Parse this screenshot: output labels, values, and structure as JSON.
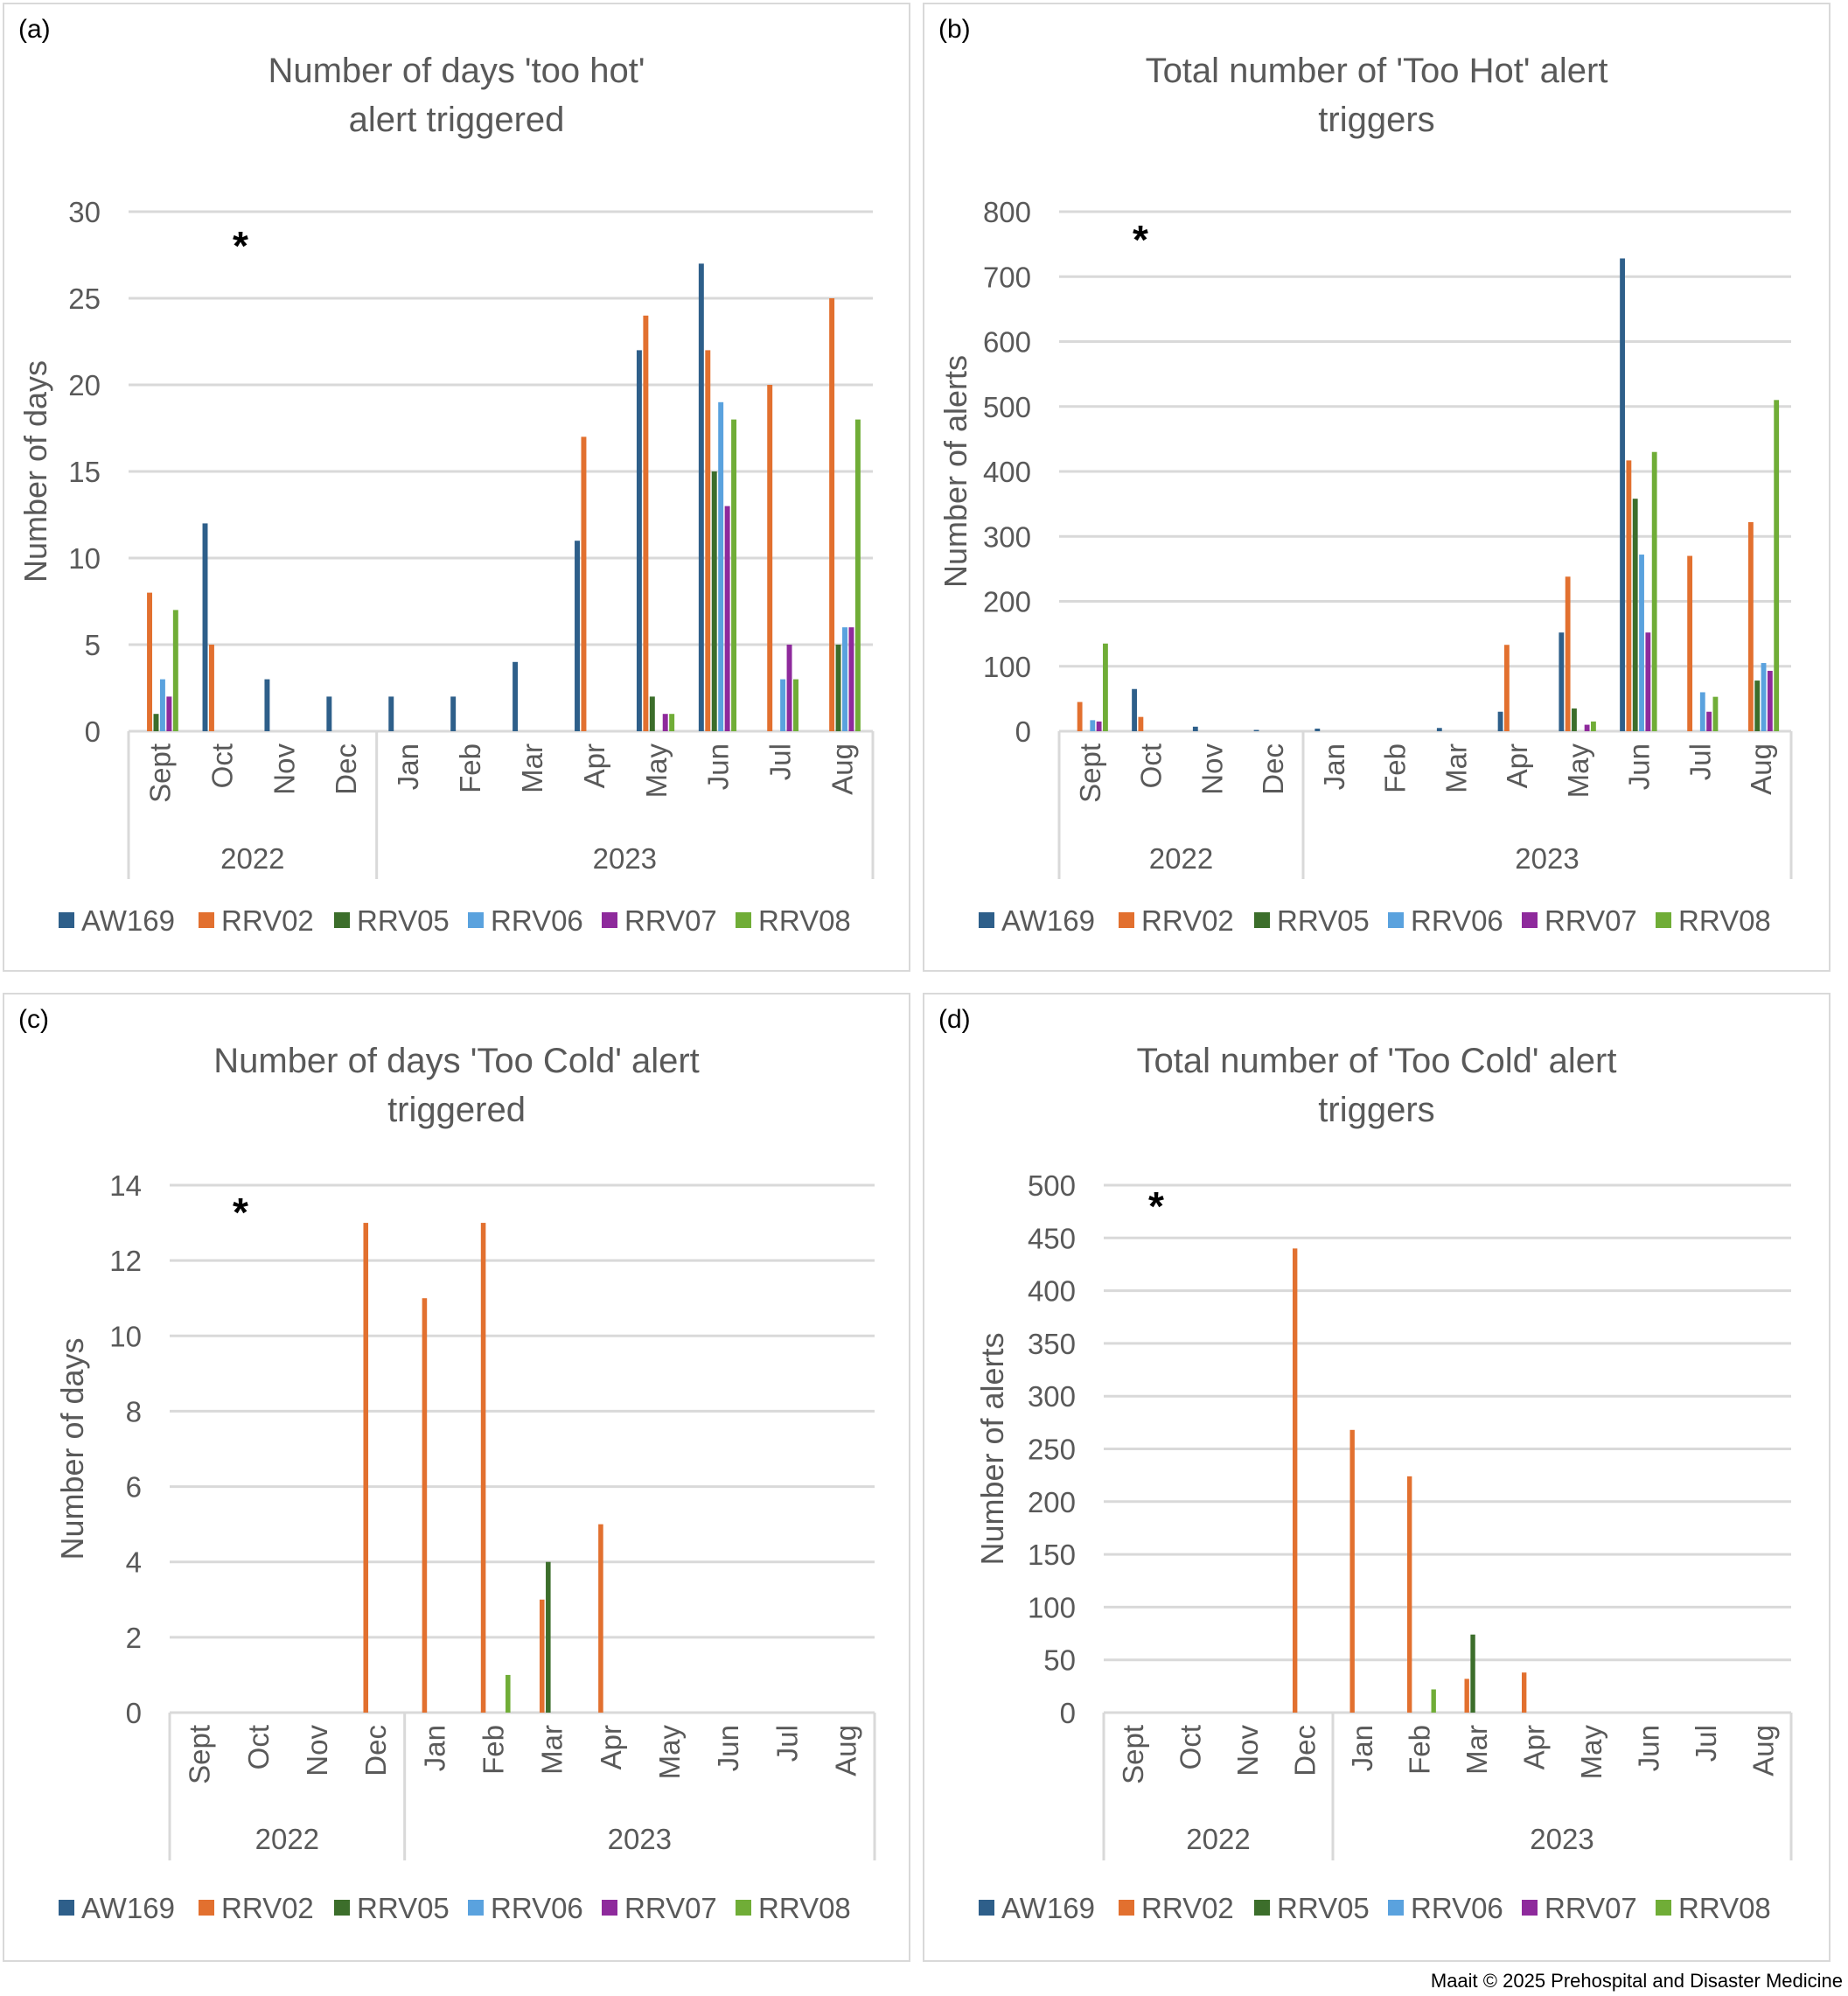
{
  "footer": "Maait © 2025 Prehospital and Disaster Medicine",
  "chart_data": [
    {
      "panel": "(a)",
      "type": "bar",
      "title": "Number of days 'too hot' alert triggered",
      "ylabel": "Number of days",
      "xlabel": "",
      "ylim": [
        0,
        30
      ],
      "yticks": [
        0,
        5,
        10,
        15,
        20,
        25,
        30
      ],
      "grid": true,
      "legend": "bottom",
      "annotation": "*",
      "categories": [
        "Sept",
        "Oct",
        "Nov",
        "Dec",
        "Jan",
        "Feb",
        "Mar",
        "Apr",
        "May",
        "Jun",
        "Jul",
        "Aug"
      ],
      "groups": [
        {
          "label": "2022",
          "span": 4
        },
        {
          "label": "2023",
          "span": 8
        }
      ],
      "series": [
        {
          "name": "AW169",
          "color": "#2e5f8a",
          "values": [
            0,
            12,
            3,
            2,
            2,
            2,
            4,
            11,
            22,
            27,
            0,
            0
          ]
        },
        {
          "name": "RRV02",
          "color": "#e2702f",
          "values": [
            8,
            5,
            0,
            0,
            0,
            0,
            0,
            17,
            24,
            22,
            20,
            25
          ]
        },
        {
          "name": "RRV05",
          "color": "#3c6e2b",
          "values": [
            1,
            0,
            0,
            0,
            0,
            0,
            0,
            0,
            2,
            15,
            0,
            5
          ]
        },
        {
          "name": "RRV06",
          "color": "#5aa2de",
          "values": [
            3,
            0,
            0,
            0,
            0,
            0,
            0,
            0,
            0,
            19,
            3,
            6
          ]
        },
        {
          "name": "RRV07",
          "color": "#8e2a9c",
          "values": [
            2,
            0,
            0,
            0,
            0,
            0,
            0,
            0,
            1,
            13,
            5,
            6
          ]
        },
        {
          "name": "RRV08",
          "color": "#70ad37",
          "values": [
            7,
            0,
            0,
            0,
            0,
            0,
            0,
            0,
            1,
            18,
            3,
            18
          ]
        }
      ]
    },
    {
      "panel": "(b)",
      "type": "bar",
      "title": "Total number of 'Too Hot' alert triggers",
      "ylabel": "Number of alerts",
      "xlabel": "",
      "ylim": [
        0,
        800
      ],
      "yticks": [
        0,
        100,
        200,
        300,
        400,
        500,
        600,
        700,
        800
      ],
      "grid": true,
      "legend": "bottom",
      "annotation": "*",
      "categories": [
        "Sept",
        "Oct",
        "Nov",
        "Dec",
        "Jan",
        "Feb",
        "Mar",
        "Apr",
        "May",
        "Jun",
        "Jul",
        "Aug"
      ],
      "groups": [
        {
          "label": "2022",
          "span": 4
        },
        {
          "label": "2023",
          "span": 8
        }
      ],
      "series": [
        {
          "name": "AW169",
          "color": "#2e5f8a",
          "values": [
            0,
            65,
            7,
            2,
            4,
            0,
            5,
            30,
            152,
            728,
            0,
            0
          ]
        },
        {
          "name": "RRV02",
          "color": "#e2702f",
          "values": [
            45,
            22,
            0,
            0,
            0,
            0,
            0,
            133,
            238,
            417,
            270,
            322
          ]
        },
        {
          "name": "RRV05",
          "color": "#3c6e2b",
          "values": [
            0,
            0,
            0,
            0,
            0,
            0,
            0,
            0,
            35,
            358,
            0,
            78
          ]
        },
        {
          "name": "RRV06",
          "color": "#5aa2de",
          "values": [
            17,
            0,
            0,
            0,
            0,
            0,
            0,
            0,
            0,
            272,
            60,
            105
          ]
        },
        {
          "name": "RRV07",
          "color": "#8e2a9c",
          "values": [
            15,
            0,
            0,
            0,
            0,
            0,
            0,
            0,
            10,
            152,
            30,
            93
          ]
        },
        {
          "name": "RRV08",
          "color": "#70ad37",
          "values": [
            135,
            0,
            0,
            0,
            0,
            0,
            0,
            0,
            15,
            430,
            53,
            510
          ]
        }
      ]
    },
    {
      "panel": "(c)",
      "type": "bar",
      "title": "Number of days 'Too Cold' alert triggered",
      "ylabel": "Number of days",
      "xlabel": "",
      "ylim": [
        0,
        14
      ],
      "yticks": [
        0,
        2,
        4,
        6,
        8,
        10,
        12,
        14
      ],
      "grid": true,
      "legend": "bottom",
      "annotation": "*",
      "categories": [
        "Sept",
        "Oct",
        "Nov",
        "Dec",
        "Jan",
        "Feb",
        "Mar",
        "Apr",
        "May",
        "Jun",
        "Jul",
        "Aug"
      ],
      "groups": [
        {
          "label": "2022",
          "span": 4
        },
        {
          "label": "2023",
          "span": 8
        }
      ],
      "series": [
        {
          "name": "AW169",
          "color": "#2e5f8a",
          "values": [
            0,
            0,
            0,
            0,
            0,
            0,
            0,
            0,
            0,
            0,
            0,
            0
          ]
        },
        {
          "name": "RRV02",
          "color": "#e2702f",
          "values": [
            0,
            0,
            0,
            13,
            11,
            13,
            3,
            5,
            0,
            0,
            0,
            0
          ]
        },
        {
          "name": "RRV05",
          "color": "#3c6e2b",
          "values": [
            0,
            0,
            0,
            0,
            0,
            0,
            4,
            0,
            0,
            0,
            0,
            0
          ]
        },
        {
          "name": "RRV06",
          "color": "#5aa2de",
          "values": [
            0,
            0,
            0,
            0,
            0,
            0,
            0,
            0,
            0,
            0,
            0,
            0
          ]
        },
        {
          "name": "RRV07",
          "color": "#8e2a9c",
          "values": [
            0,
            0,
            0,
            0,
            0,
            0,
            0,
            0,
            0,
            0,
            0,
            0
          ]
        },
        {
          "name": "RRV08",
          "color": "#70ad37",
          "values": [
            0,
            0,
            0,
            0,
            0,
            1,
            0,
            0,
            0,
            0,
            0,
            0
          ]
        }
      ]
    },
    {
      "panel": "(d)",
      "type": "bar",
      "title": "Total number of 'Too Cold' alert triggers",
      "ylabel": "Number of alerts",
      "xlabel": "",
      "ylim": [
        0,
        500
      ],
      "yticks": [
        0,
        50,
        100,
        150,
        200,
        250,
        300,
        350,
        400,
        450,
        500
      ],
      "grid": true,
      "legend": "bottom",
      "annotation": "*",
      "categories": [
        "Sept",
        "Oct",
        "Nov",
        "Dec",
        "Jan",
        "Feb",
        "Mar",
        "Apr",
        "May",
        "Jun",
        "Jul",
        "Aug"
      ],
      "groups": [
        {
          "label": "2022",
          "span": 4
        },
        {
          "label": "2023",
          "span": 8
        }
      ],
      "series": [
        {
          "name": "AW169",
          "color": "#2e5f8a",
          "values": [
            0,
            0,
            0,
            0,
            0,
            0,
            0,
            0,
            0,
            0,
            0,
            0
          ]
        },
        {
          "name": "RRV02",
          "color": "#e2702f",
          "values": [
            0,
            0,
            0,
            440,
            268,
            224,
            32,
            38,
            0,
            0,
            0,
            0
          ]
        },
        {
          "name": "RRV05",
          "color": "#3c6e2b",
          "values": [
            0,
            0,
            0,
            0,
            0,
            0,
            74,
            0,
            0,
            0,
            0,
            0
          ]
        },
        {
          "name": "RRV06",
          "color": "#5aa2de",
          "values": [
            0,
            0,
            0,
            0,
            0,
            0,
            0,
            0,
            0,
            0,
            0,
            0
          ]
        },
        {
          "name": "RRV07",
          "color": "#8e2a9c",
          "values": [
            0,
            0,
            0,
            0,
            0,
            0,
            0,
            0,
            0,
            0,
            0,
            0
          ]
        },
        {
          "name": "RRV08",
          "color": "#70ad37",
          "values": [
            0,
            0,
            0,
            0,
            0,
            22,
            0,
            0,
            0,
            0,
            0,
            0
          ]
        }
      ]
    }
  ]
}
